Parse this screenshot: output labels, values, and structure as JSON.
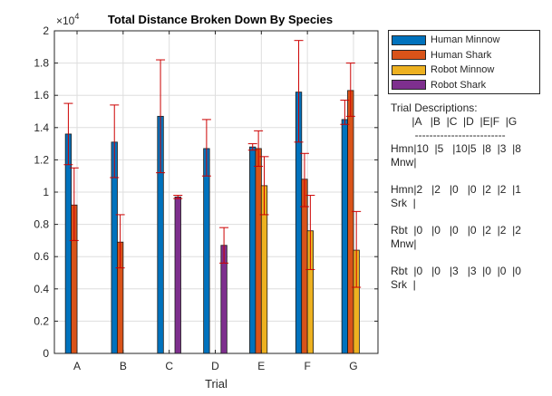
{
  "chart_data": {
    "type": "bar",
    "title": "Total Distance Broken Down By Species",
    "xlabel": "Trial",
    "ylabel": "",
    "exponent_label": "×10",
    "exponent_power": "4",
    "categories": [
      "A",
      "B",
      "C",
      "D",
      "E",
      "F",
      "G"
    ],
    "ylim": [
      0,
      2
    ],
    "yticks": [
      "0",
      "0.2",
      "0.4",
      "0.6",
      "0.8",
      "1",
      "1.2",
      "1.4",
      "1.6",
      "1.8",
      "2"
    ],
    "grid": true,
    "legend_position": "outside-right-top",
    "series": [
      {
        "name": "Human Minnow",
        "color": "#0072BD",
        "values": [
          1.36,
          1.31,
          1.47,
          1.27,
          1.28,
          1.62,
          1.45
        ],
        "err_low": [
          1.17,
          1.09,
          1.12,
          1.1,
          1.26,
          1.31,
          1.42
        ],
        "err_high": [
          1.55,
          1.54,
          1.82,
          1.45,
          1.3,
          1.94,
          1.57
        ]
      },
      {
        "name": "Human Shark",
        "color": "#D95319",
        "values": [
          0.92,
          0.69,
          0,
          0,
          1.27,
          1.08,
          1.63
        ],
        "err_low": [
          0.7,
          0.53,
          null,
          null,
          1.16,
          0.91,
          1.47
        ],
        "err_high": [
          1.15,
          0.86,
          null,
          null,
          1.38,
          1.24,
          1.8
        ]
      },
      {
        "name": "Robot Minnow",
        "color": "#EDB120",
        "values": [
          0,
          0,
          0,
          0,
          1.04,
          0.76,
          0.64
        ],
        "err_low": [
          null,
          null,
          null,
          null,
          0.86,
          0.52,
          0.41
        ],
        "err_high": [
          null,
          null,
          null,
          null,
          1.22,
          0.98,
          0.88
        ]
      },
      {
        "name": "Robot Shark",
        "color": "#7E2F8E",
        "values": [
          0,
          0,
          0.97,
          0.67,
          0,
          0,
          0
        ],
        "err_low": [
          null,
          null,
          0.96,
          0.56,
          null,
          null,
          null
        ],
        "err_high": [
          null,
          null,
          0.98,
          0.78,
          null,
          null,
          null
        ]
      }
    ],
    "error_bar_color": "#CC0000"
  },
  "descriptions": {
    "heading": "Trial Descriptions:",
    "lines": [
      "       |A   |B  |C  |D  |E|F  |G",
      "        -------------------------",
      "Hmn|10  |5   |10|5  |8  |3  |8",
      "Mnw|",
      "",
      "Hmn|2   |2   |0   |0  |2  |2  |1",
      "Srk  |",
      "",
      "Rbt  |0   |0   |0   |0  |2  |2  |2",
      "Mnw|",
      "",
      "Rbt  |0   |0   |3   |3  |0  |0  |0",
      "Srk  |"
    ]
  }
}
